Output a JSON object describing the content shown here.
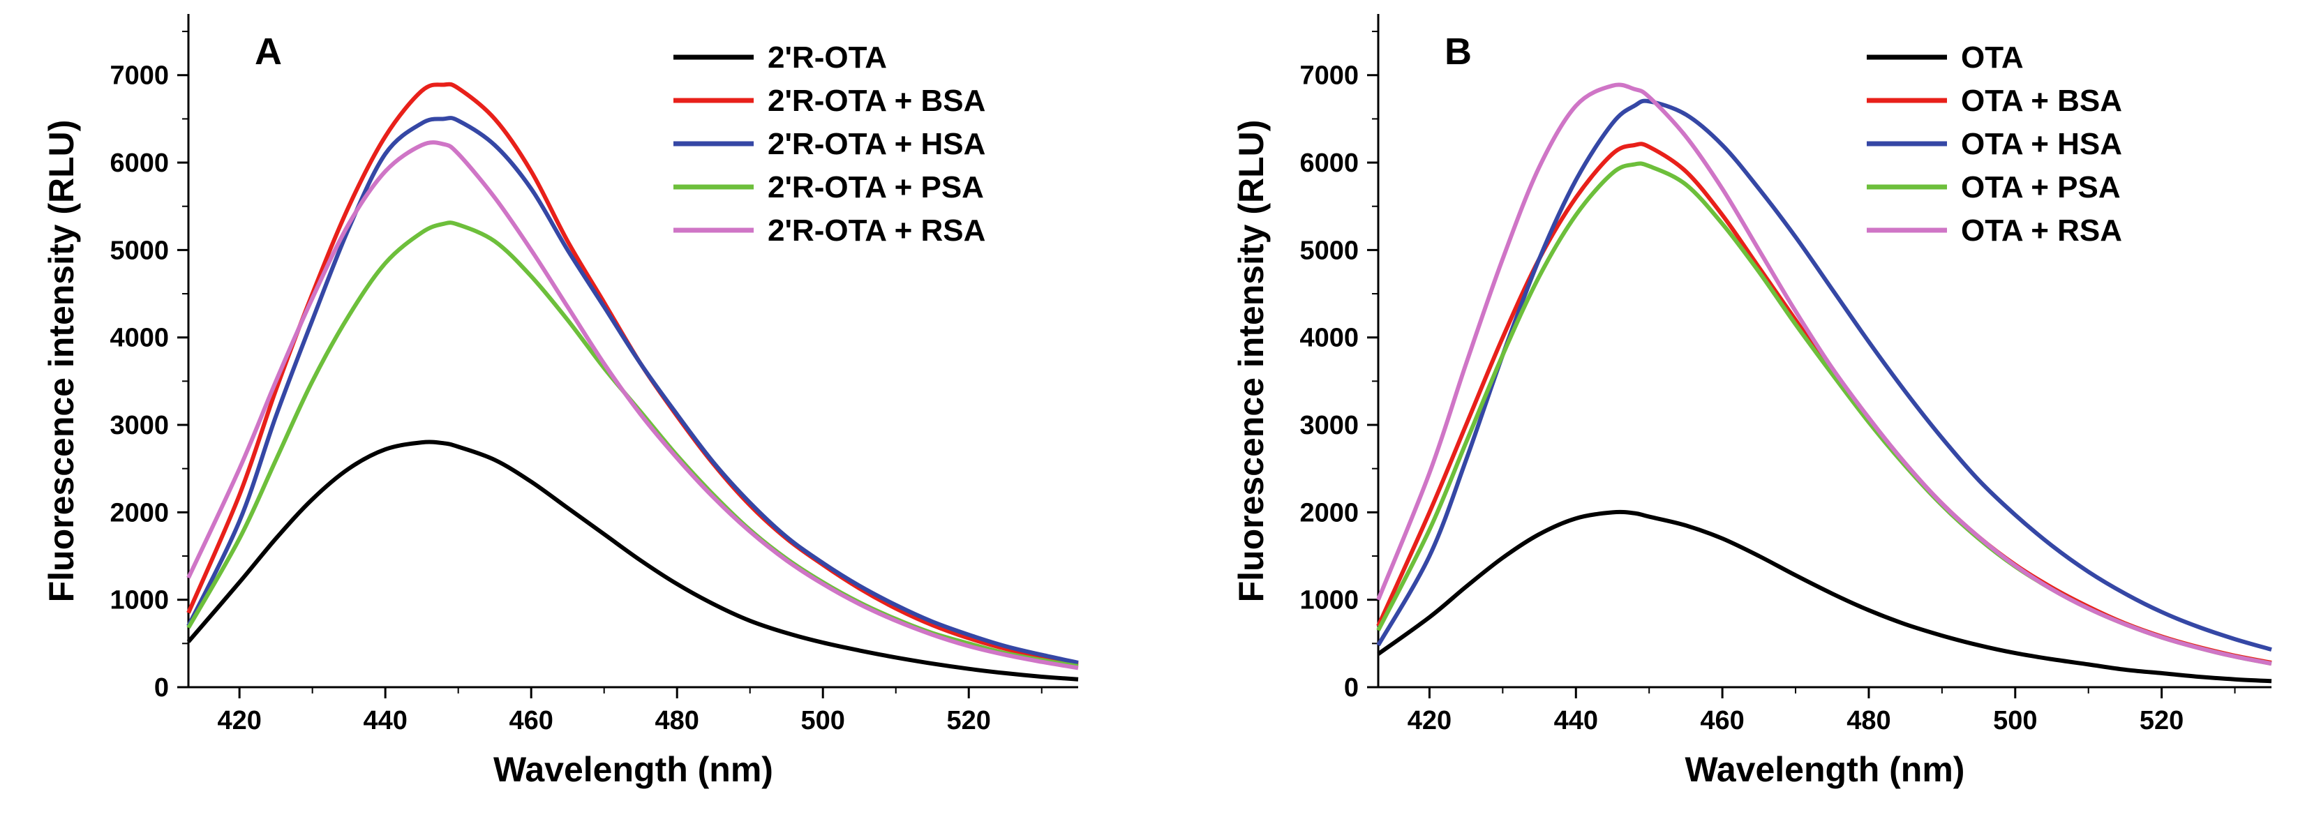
{
  "chart_data": [
    {
      "type": "line",
      "panel_label": "A",
      "xlabel": "Wavelength (nm)",
      "ylabel": "Fluorescence intensity (RLU)",
      "xlim": [
        413,
        535
      ],
      "ylim": [
        0,
        7700
      ],
      "xticks": [
        420,
        440,
        460,
        480,
        500,
        520
      ],
      "yticks": [
        0,
        1000,
        2000,
        3000,
        4000,
        5000,
        6000,
        7000
      ],
      "legend_position": "top-right",
      "x": [
        413,
        420,
        425,
        430,
        435,
        440,
        445,
        448,
        450,
        455,
        460,
        465,
        470,
        475,
        480,
        485,
        490,
        495,
        500,
        505,
        510,
        515,
        520,
        525,
        530,
        535
      ],
      "series": [
        {
          "name": "2'R-OTA",
          "color": "#000000",
          "values": [
            520,
            1200,
            1700,
            2150,
            2500,
            2720,
            2800,
            2790,
            2750,
            2600,
            2350,
            2050,
            1750,
            1450,
            1180,
            950,
            760,
            620,
            510,
            420,
            340,
            270,
            210,
            160,
            120,
            90
          ]
        },
        {
          "name": "2'R-OTA + BSA",
          "color": "#e8201a",
          "values": [
            850,
            2200,
            3400,
            4500,
            5500,
            6300,
            6820,
            6890,
            6850,
            6500,
            5900,
            5100,
            4400,
            3700,
            3100,
            2550,
            2080,
            1700,
            1400,
            1130,
            900,
            710,
            560,
            440,
            340,
            260
          ]
        },
        {
          "name": "2'R-OTA + HSA",
          "color": "#3547a5",
          "values": [
            700,
            1900,
            3100,
            4200,
            5250,
            6100,
            6450,
            6500,
            6480,
            6200,
            5700,
            5000,
            4350,
            3700,
            3120,
            2570,
            2110,
            1720,
            1420,
            1160,
            940,
            750,
            600,
            470,
            370,
            280
          ]
        },
        {
          "name": "2'R-OTA + PSA",
          "color": "#6dbf3b",
          "values": [
            680,
            1700,
            2600,
            3500,
            4250,
            4850,
            5200,
            5300,
            5290,
            5100,
            4700,
            4200,
            3650,
            3150,
            2650,
            2200,
            1800,
            1470,
            1200,
            970,
            780,
            620,
            500,
            390,
            310,
            240
          ]
        },
        {
          "name": "2'R-OTA + RSA",
          "color": "#cf75c6",
          "values": [
            1250,
            2500,
            3500,
            4450,
            5300,
            5900,
            6200,
            6210,
            6100,
            5600,
            5000,
            4350,
            3700,
            3120,
            2620,
            2170,
            1780,
            1450,
            1180,
            950,
            760,
            600,
            470,
            370,
            290,
            220
          ]
        }
      ]
    },
    {
      "type": "line",
      "panel_label": "B",
      "xlabel": "Wavelength (nm)",
      "ylabel": "Fluorescence intensity (RLU)",
      "xlim": [
        413,
        535
      ],
      "ylim": [
        0,
        7700
      ],
      "xticks": [
        420,
        440,
        460,
        480,
        500,
        520
      ],
      "yticks": [
        0,
        1000,
        2000,
        3000,
        4000,
        5000,
        6000,
        7000
      ],
      "legend_position": "top-right",
      "x": [
        413,
        420,
        425,
        430,
        435,
        440,
        445,
        448,
        450,
        455,
        460,
        465,
        470,
        475,
        480,
        485,
        490,
        495,
        500,
        505,
        510,
        515,
        520,
        525,
        530,
        535
      ],
      "series": [
        {
          "name": "OTA",
          "color": "#000000",
          "values": [
            380,
            800,
            1150,
            1480,
            1750,
            1930,
            2000,
            1990,
            1950,
            1850,
            1700,
            1500,
            1280,
            1070,
            880,
            720,
            590,
            480,
            390,
            320,
            260,
            200,
            160,
            120,
            90,
            70
          ]
        },
        {
          "name": "OTA + BSA",
          "color": "#e8201a",
          "values": [
            700,
            2000,
            3000,
            4000,
            4900,
            5600,
            6100,
            6200,
            6180,
            5900,
            5400,
            4800,
            4200,
            3600,
            3050,
            2550,
            2100,
            1720,
            1400,
            1140,
            920,
            730,
            580,
            460,
            360,
            280
          ]
        },
        {
          "name": "OTA + HSA",
          "color": "#3547a5",
          "values": [
            480,
            1500,
            2600,
            3800,
            4900,
            5800,
            6450,
            6650,
            6700,
            6550,
            6200,
            5700,
            5150,
            4550,
            3950,
            3380,
            2850,
            2370,
            1970,
            1620,
            1320,
            1070,
            860,
            690,
            550,
            430
          ]
        },
        {
          "name": "OTA + PSA",
          "color": "#6dbf3b",
          "values": [
            650,
            1800,
            2800,
            3800,
            4700,
            5400,
            5880,
            5980,
            5960,
            5750,
            5300,
            4750,
            4150,
            3580,
            3030,
            2530,
            2080,
            1700,
            1380,
            1120,
            900,
            720,
            570,
            450,
            350,
            270
          ]
        },
        {
          "name": "OTA + RSA",
          "color": "#cf75c6",
          "values": [
            1000,
            2450,
            3700,
            4900,
            5950,
            6650,
            6880,
            6840,
            6750,
            6300,
            5700,
            5000,
            4300,
            3650,
            3080,
            2560,
            2100,
            1720,
            1390,
            1120,
            900,
            720,
            570,
            450,
            350,
            270
          ]
        }
      ]
    }
  ]
}
